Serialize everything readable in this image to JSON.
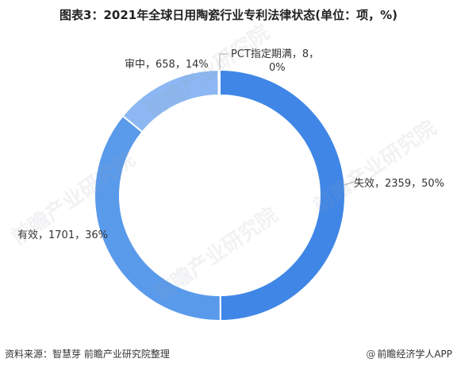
{
  "title": "图表3：2021年全球日用陶瓷行业专利法律状态(单位：项，%)",
  "footer": {
    "source": "资料来源：智慧芽 前瞻产业研究院整理",
    "credit": "前瞻经济学人APP"
  },
  "watermark": "前瞻产业研究院",
  "colors": {
    "失效": "#3f86e6",
    "有效": "#5a9aeb",
    "审中": "#8cb7f2",
    "PCT指定期满": "#bcd6f7",
    "leader": "#aaaaaa",
    "label": "#333333"
  },
  "chart_data": {
    "type": "pie",
    "style": "donut",
    "title": "图表3：2021年全球日用陶瓷行业专利法律状态(单位：项，%)",
    "categories": [
      "失效",
      "有效",
      "审中",
      "PCT指定期满"
    ],
    "values": [
      2359,
      1701,
      658,
      8
    ],
    "percents": [
      50,
      36,
      14,
      0
    ],
    "labels": [
      "失效，2359，50%",
      "有效，1701，36%",
      "审中，658，14%",
      "PCT指定期满，8，0%"
    ],
    "legend": "none"
  }
}
